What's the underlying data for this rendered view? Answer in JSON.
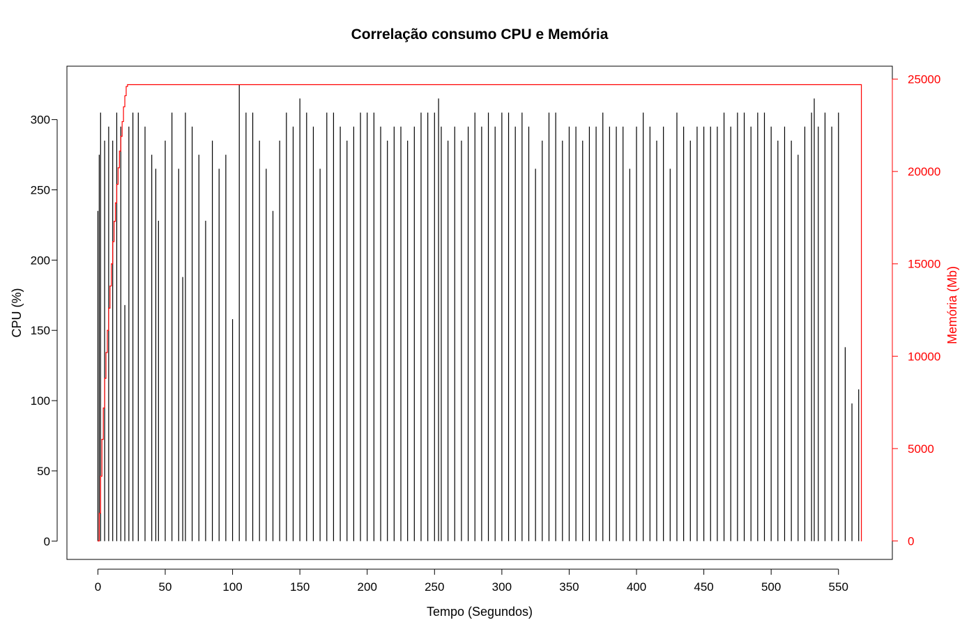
{
  "chart_data": {
    "type": "line",
    "title": "Correlação consumo CPU e Memória",
    "xlabel": "Tempo (Segundos)",
    "ylabel_left": "CPU (%)",
    "ylabel_right": "Memória (Mb)",
    "xlim": [
      -23,
      590
    ],
    "x_ticks": [
      0,
      50,
      100,
      150,
      200,
      250,
      300,
      350,
      400,
      450,
      500,
      550
    ],
    "ylim_left": [
      -13,
      338
    ],
    "y_ticks_left": [
      0,
      50,
      100,
      150,
      200,
      250,
      300
    ],
    "ylim_right": [
      -1000,
      25700
    ],
    "y_ticks_right": [
      0,
      5000,
      10000,
      15000,
      20000,
      25000
    ],
    "grid": false,
    "colors": {
      "cpu": "#000000",
      "memory": "#ff0000",
      "axis": "#000000"
    },
    "series": [
      {
        "name": "CPU (%)",
        "axis": "left",
        "style": "high-density vertical lines (spikes from 0 to value)",
        "x": [
          0,
          1,
          2,
          5,
          8,
          11,
          14,
          17,
          20,
          23,
          26,
          30,
          35,
          40,
          43,
          45,
          50,
          55,
          60,
          63,
          65,
          70,
          75,
          80,
          85,
          90,
          95,
          100,
          105,
          110,
          115,
          120,
          125,
          130,
          135,
          140,
          145,
          150,
          155,
          160,
          165,
          170,
          175,
          180,
          185,
          190,
          195,
          200,
          205,
          210,
          215,
          220,
          225,
          230,
          235,
          240,
          245,
          250,
          253,
          255,
          260,
          265,
          270,
          275,
          280,
          285,
          290,
          295,
          300,
          305,
          310,
          315,
          320,
          325,
          330,
          335,
          340,
          345,
          350,
          355,
          360,
          365,
          370,
          375,
          380,
          385,
          390,
          395,
          400,
          405,
          410,
          415,
          420,
          425,
          430,
          435,
          440,
          445,
          450,
          455,
          460,
          465,
          470,
          475,
          480,
          485,
          490,
          495,
          500,
          505,
          510,
          515,
          520,
          525,
          530,
          532,
          535,
          540,
          545,
          550,
          555,
          560,
          565
        ],
        "y": [
          235,
          275,
          305,
          285,
          295,
          285,
          305,
          295,
          168,
          295,
          305,
          305,
          295,
          275,
          265,
          228,
          285,
          305,
          265,
          188,
          305,
          295,
          275,
          228,
          285,
          265,
          275,
          158,
          325,
          305,
          305,
          285,
          265,
          235,
          285,
          305,
          295,
          315,
          305,
          295,
          265,
          305,
          305,
          295,
          285,
          295,
          305,
          305,
          305,
          295,
          285,
          295,
          295,
          285,
          295,
          305,
          305,
          305,
          315,
          295,
          285,
          295,
          285,
          295,
          305,
          295,
          305,
          295,
          305,
          305,
          295,
          305,
          295,
          265,
          285,
          305,
          305,
          285,
          295,
          295,
          285,
          295,
          295,
          305,
          295,
          295,
          295,
          265,
          295,
          305,
          295,
          285,
          295,
          265,
          305,
          295,
          285,
          295,
          295,
          295,
          295,
          305,
          295,
          305,
          305,
          295,
          305,
          305,
          295,
          285,
          295,
          285,
          275,
          295,
          305,
          315,
          295,
          305,
          295,
          305,
          138,
          98,
          108
        ]
      },
      {
        "name": "Memória (Mb)",
        "axis": "right",
        "style": "step line",
        "x": [
          0,
          1,
          2,
          3,
          4,
          5,
          6,
          7,
          8,
          9,
          10,
          11,
          12,
          13,
          14,
          15,
          16,
          17,
          18,
          19,
          20,
          21,
          22,
          566,
          567
        ],
        "y": [
          0,
          1500,
          3500,
          5500,
          7200,
          8800,
          10200,
          11400,
          12600,
          13800,
          15000,
          16200,
          17300,
          18300,
          19300,
          20200,
          21100,
          21900,
          22700,
          23500,
          24100,
          24600,
          24700,
          24700,
          0
        ]
      }
    ]
  }
}
